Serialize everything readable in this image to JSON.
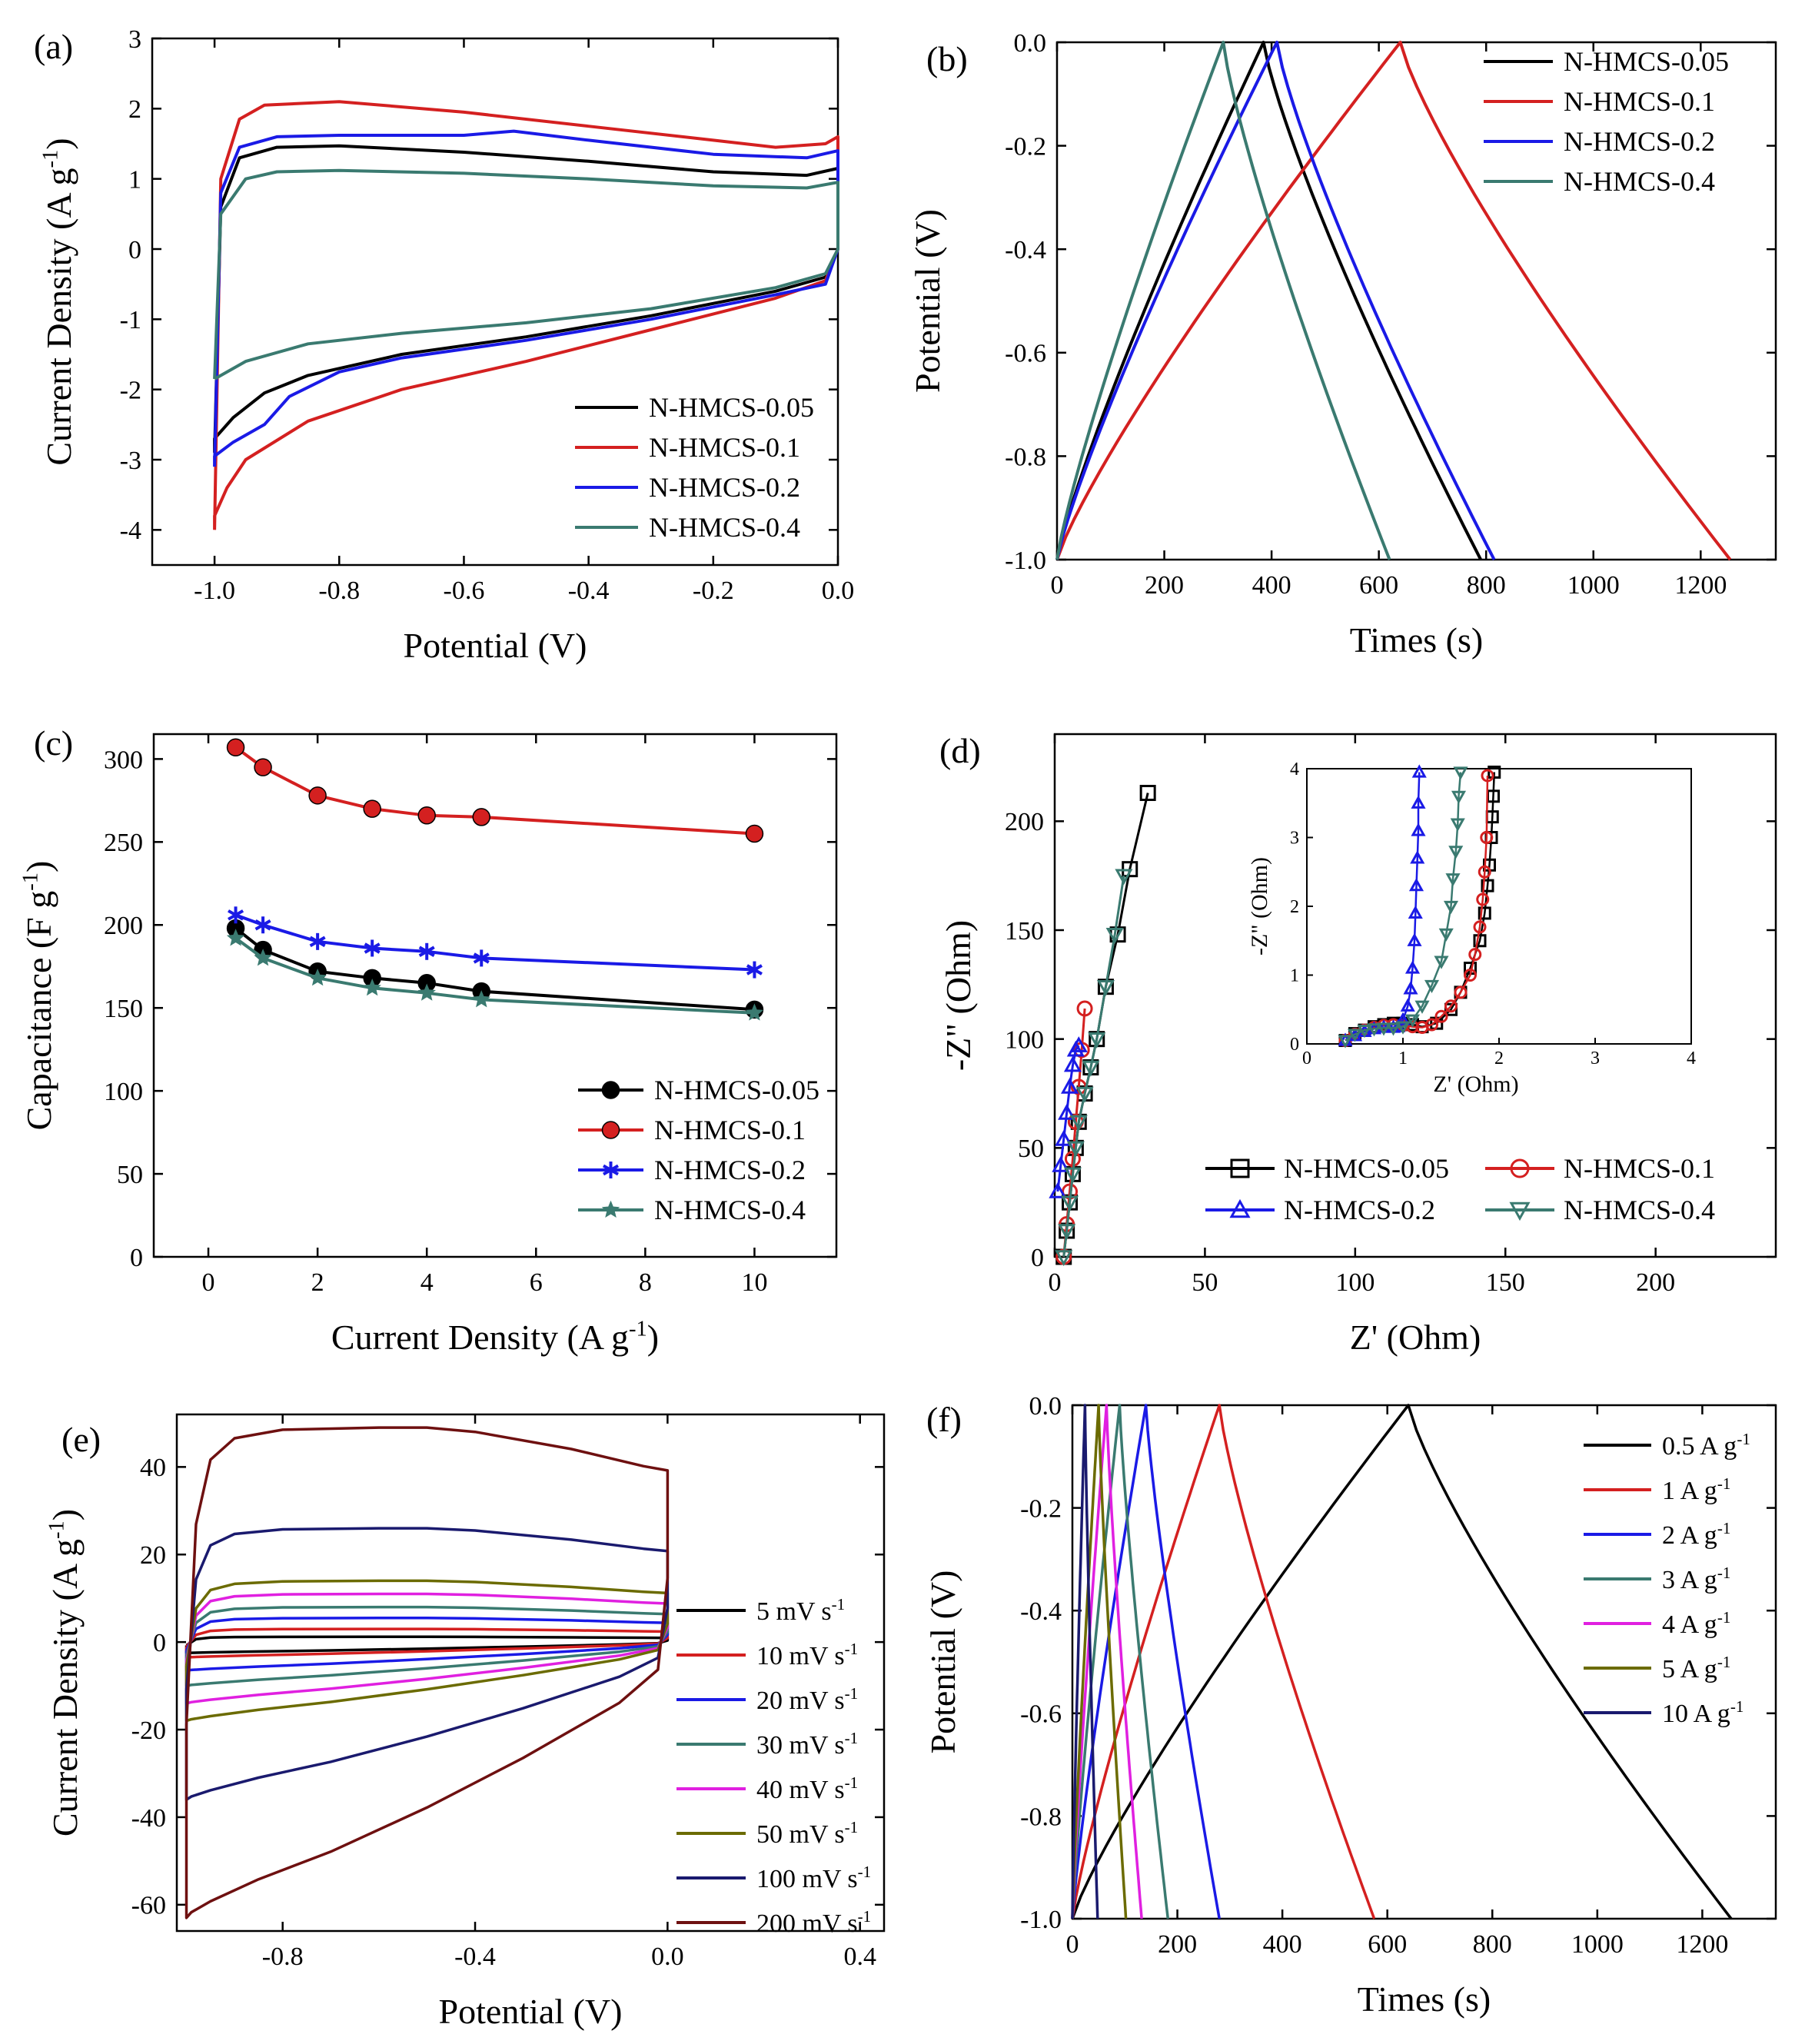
{
  "chart_data": [
    {
      "type": "line",
      "panel_label": "(a)",
      "xlabel": "Potential (V)",
      "ylabel": "Current Density (A g",
      "ylabel_sup": "-1",
      "ylabel_end": ")",
      "xlim": [
        -1.1,
        0.0
      ],
      "ylim": [
        -4.5,
        3
      ],
      "xticks": [
        -1.0,
        -0.8,
        -0.6,
        -0.4,
        -0.2,
        0.0
      ],
      "xtick_labels": [
        "-1.0",
        "-0.8",
        "-0.6",
        "-0.4",
        "-0.2",
        "0.0"
      ],
      "yticks": [
        -4,
        -3,
        -2,
        -1,
        0,
        1,
        2,
        3
      ],
      "ytick_labels": [
        "-4",
        "-3",
        "-2",
        "-1",
        "0",
        "1",
        "2",
        "3"
      ],
      "legend_position": "bottom-right",
      "series": [
        {
          "name": "N-HMCS-0.05",
          "color": "#000000",
          "x": [
            -1.0,
            -0.99,
            -0.96,
            -0.9,
            -0.8,
            -0.6,
            -0.4,
            -0.2,
            -0.05,
            0.0,
            0.0,
            -0.02,
            -0.1,
            -0.3,
            -0.5,
            -0.7,
            -0.85,
            -0.92,
            -0.97,
            -1.0,
            -1.0
          ],
          "y": [
            -2.9,
            0.6,
            1.3,
            1.45,
            1.47,
            1.38,
            1.25,
            1.1,
            1.05,
            1.15,
            0.0,
            -0.4,
            -0.6,
            -0.95,
            -1.25,
            -1.5,
            -1.8,
            -2.05,
            -2.4,
            -2.7,
            -2.9
          ]
        },
        {
          "name": "N-HMCS-0.1",
          "color": "#d42020",
          "x": [
            -1.0,
            -0.99,
            -0.96,
            -0.92,
            -0.8,
            -0.6,
            -0.4,
            -0.2,
            -0.1,
            -0.02,
            0.0,
            0.0,
            -0.02,
            -0.1,
            -0.3,
            -0.5,
            -0.7,
            -0.85,
            -0.95,
            -0.98,
            -1.0,
            -1.0
          ],
          "y": [
            -4.0,
            1.0,
            1.85,
            2.05,
            2.1,
            1.95,
            1.75,
            1.55,
            1.45,
            1.5,
            1.6,
            0.0,
            -0.45,
            -0.7,
            -1.15,
            -1.6,
            -2.0,
            -2.45,
            -3.0,
            -3.4,
            -3.8,
            -4.0
          ]
        },
        {
          "name": "N-HMCS-0.2",
          "color": "#1a1ae6",
          "x": [
            -1.0,
            -0.99,
            -0.96,
            -0.9,
            -0.8,
            -0.6,
            -0.52,
            -0.4,
            -0.2,
            -0.05,
            0.0,
            0.0,
            -0.02,
            -0.1,
            -0.3,
            -0.5,
            -0.7,
            -0.8,
            -0.88,
            -0.92,
            -0.97,
            -1.0,
            -1.0
          ],
          "y": [
            -3.1,
            0.8,
            1.45,
            1.6,
            1.62,
            1.62,
            1.68,
            1.55,
            1.35,
            1.3,
            1.4,
            0.0,
            -0.5,
            -0.65,
            -1.0,
            -1.3,
            -1.55,
            -1.75,
            -2.1,
            -2.5,
            -2.75,
            -2.95,
            -3.1
          ]
        },
        {
          "name": "N-HMCS-0.4",
          "color": "#3a7a70",
          "x": [
            -1.0,
            -0.99,
            -0.95,
            -0.9,
            -0.8,
            -0.6,
            -0.4,
            -0.2,
            -0.05,
            0.0,
            0.0,
            -0.02,
            -0.1,
            -0.3,
            -0.5,
            -0.7,
            -0.85,
            -0.95,
            -1.0
          ],
          "y": [
            -1.85,
            0.5,
            1.0,
            1.1,
            1.12,
            1.08,
            1.0,
            0.9,
            0.87,
            0.95,
            0.0,
            -0.35,
            -0.55,
            -0.85,
            -1.05,
            -1.2,
            -1.35,
            -1.6,
            -1.85
          ]
        }
      ]
    },
    {
      "type": "line",
      "panel_label": "(b)",
      "xlabel": "Times (s)",
      "ylabel": "Potential (V)",
      "xlim": [
        0,
        1340
      ],
      "ylim": [
        -1.0,
        0.0
      ],
      "xticks": [
        0,
        200,
        400,
        600,
        800,
        1000,
        1200
      ],
      "xtick_labels": [
        "0",
        "200",
        "400",
        "600",
        "800",
        "1000",
        "1200"
      ],
      "yticks": [
        -1.0,
        -0.8,
        -0.6,
        -0.4,
        -0.2,
        0.0
      ],
      "ytick_labels": [
        "-1.0",
        "-0.8",
        "-0.6",
        "-0.4",
        "-0.2",
        "0.0"
      ],
      "legend_position": "top-right",
      "series": [
        {
          "name": "N-HMCS-0.05",
          "color": "#000000",
          "t_peak": 385,
          "t_end": 790
        },
        {
          "name": "N-HMCS-0.1",
          "color": "#d42020",
          "t_peak": 640,
          "t_end": 1255
        },
        {
          "name": "N-HMCS-0.2",
          "color": "#1a1ae6",
          "t_peak": 410,
          "t_end": 815
        },
        {
          "name": "N-HMCS-0.4",
          "color": "#3a7a70",
          "t_peak": 310,
          "t_end": 620
        }
      ]
    },
    {
      "type": "line",
      "panel_label": "(c)",
      "xlabel": "Current Density (A g",
      "xlabel_sup": "-1",
      "xlabel_end": ")",
      "ylabel": "Capacitance (F g",
      "ylabel_sup": "-1",
      "ylabel_end": ")",
      "xlim": [
        -1,
        11.5
      ],
      "ylim": [
        0,
        315
      ],
      "xticks": [
        0,
        2,
        4,
        6,
        8,
        10
      ],
      "xtick_labels": [
        "0",
        "2",
        "4",
        "6",
        "8",
        "10"
      ],
      "yticks": [
        0,
        50,
        100,
        150,
        200,
        250,
        300
      ],
      "ytick_labels": [
        "0",
        "50",
        "100",
        "150",
        "200",
        "250",
        "300"
      ],
      "legend_position": "bottom-right",
      "x": [
        0.5,
        1,
        2,
        3,
        4,
        5,
        10
      ],
      "series": [
        {
          "name": "N-HMCS-0.05",
          "color": "#000000",
          "marker": "circle",
          "values": [
            198,
            185,
            172,
            168,
            165,
            160,
            149
          ]
        },
        {
          "name": "N-HMCS-0.1",
          "color": "#d42020",
          "marker": "circle",
          "values": [
            307,
            295,
            278,
            270,
            266,
            265,
            255
          ]
        },
        {
          "name": "N-HMCS-0.2",
          "color": "#1a1ae6",
          "marker": "asterisk",
          "values": [
            206,
            200,
            190,
            186,
            184,
            180,
            173
          ]
        },
        {
          "name": "N-HMCS-0.4",
          "color": "#3a7a70",
          "marker": "star",
          "values": [
            192,
            180,
            168,
            162,
            159,
            155,
            147
          ]
        }
      ]
    },
    {
      "type": "scatter",
      "panel_label": "(d)",
      "xlabel": "Z' (Ohm)",
      "ylabel": "-Z\" (Ohm)",
      "xlim": [
        0,
        240
      ],
      "ylim": [
        0,
        240
      ],
      "xticks": [
        0,
        50,
        100,
        150,
        200
      ],
      "xtick_labels": [
        "0",
        "50",
        "100",
        "150",
        "200"
      ],
      "yticks": [
        0,
        50,
        100,
        150,
        200
      ],
      "ytick_labels": [
        "0",
        "50",
        "100",
        "150",
        "200"
      ],
      "legend_position": "bottom",
      "series": [
        {
          "name": "N-HMCS-0.05",
          "color": "#000000",
          "marker": "square",
          "x": [
            3,
            4,
            5,
            6,
            7,
            8,
            10,
            12,
            14,
            17,
            21,
            25,
            31
          ],
          "y": [
            0,
            12,
            25,
            38,
            50,
            62,
            75,
            87,
            100,
            124,
            148,
            178,
            213
          ]
        },
        {
          "name": "N-HMCS-0.1",
          "color": "#d42020",
          "marker": "circle",
          "x": [
            3,
            4,
            5,
            6,
            7,
            8,
            9,
            10
          ],
          "y": [
            0,
            15,
            30,
            45,
            62,
            78,
            95,
            114
          ]
        },
        {
          "name": "N-HMCS-0.2",
          "color": "#1a1ae6",
          "marker": "triangle-up",
          "x": [
            1,
            2,
            3,
            4,
            5,
            6,
            7,
            8
          ],
          "y": [
            30,
            42,
            54,
            66,
            78,
            88,
            95,
            97
          ]
        },
        {
          "name": "N-HMCS-0.4",
          "color": "#3a7a70",
          "marker": "triangle-down",
          "x": [
            3,
            4,
            5,
            6,
            7,
            8,
            10,
            12,
            14,
            17,
            20,
            23
          ],
          "y": [
            0,
            12,
            25,
            38,
            50,
            62,
            75,
            87,
            100,
            124,
            148,
            175
          ]
        }
      ],
      "inset": {
        "xlabel": "Z' (Ohm)",
        "ylabel": "-Z\" (Ohm)",
        "xlim": [
          0,
          4
        ],
        "ylim": [
          0,
          4
        ],
        "xticks": [
          0,
          1,
          2,
          3,
          4
        ],
        "xtick_labels": [
          "0",
          "1",
          "2",
          "3",
          "4"
        ],
        "yticks": [
          0,
          1,
          2,
          3,
          4
        ],
        "ytick_labels": [
          "0",
          "1",
          "2",
          "3",
          "4"
        ],
        "series": [
          {
            "name": "N-HMCS-0.05",
            "color": "#000000",
            "marker": "square",
            "x": [
              0.4,
              0.5,
              0.6,
              0.7,
              0.8,
              0.9,
              1.0,
              1.1,
              1.2,
              1.35,
              1.5,
              1.6,
              1.7,
              1.8,
              1.85,
              1.88,
              1.9,
              1.92,
              1.93,
              1.94,
              1.95
            ],
            "y": [
              0.05,
              0.15,
              0.2,
              0.25,
              0.28,
              0.3,
              0.3,
              0.28,
              0.25,
              0.3,
              0.5,
              0.75,
              1.1,
              1.5,
              1.9,
              2.3,
              2.6,
              3.0,
              3.3,
              3.6,
              3.95
            ]
          },
          {
            "name": "N-HMCS-0.1",
            "color": "#d42020",
            "marker": "circle",
            "x": [
              0.4,
              0.5,
              0.6,
              0.7,
              0.8,
              0.9,
              1.0,
              1.1,
              1.2,
              1.3,
              1.4,
              1.5,
              1.6,
              1.7,
              1.75,
              1.8,
              1.83,
              1.85,
              1.87,
              1.88
            ],
            "y": [
              0.05,
              0.14,
              0.2,
              0.24,
              0.27,
              0.28,
              0.27,
              0.25,
              0.24,
              0.28,
              0.4,
              0.55,
              0.75,
              1.0,
              1.3,
              1.7,
              2.1,
              2.5,
              3.0,
              3.9
            ]
          },
          {
            "name": "N-HMCS-0.2",
            "color": "#1a1ae6",
            "marker": "triangle-up",
            "x": [
              0.4,
              0.5,
              0.6,
              0.7,
              0.8,
              0.9,
              0.95,
              1.0,
              1.05,
              1.08,
              1.1,
              1.12,
              1.13,
              1.14,
              1.15,
              1.16,
              1.16,
              1.17
            ],
            "y": [
              0.05,
              0.12,
              0.18,
              0.22,
              0.24,
              0.24,
              0.25,
              0.35,
              0.55,
              0.8,
              1.1,
              1.5,
              1.9,
              2.3,
              2.7,
              3.1,
              3.5,
              3.95
            ]
          },
          {
            "name": "N-HMCS-0.4",
            "color": "#3a7a70",
            "marker": "triangle-down",
            "x": [
              0.4,
              0.5,
              0.6,
              0.7,
              0.8,
              0.9,
              1.0,
              1.1,
              1.2,
              1.3,
              1.4,
              1.45,
              1.5,
              1.52,
              1.55,
              1.57,
              1.58,
              1.6
            ],
            "y": [
              0.05,
              0.14,
              0.2,
              0.22,
              0.23,
              0.23,
              0.25,
              0.35,
              0.55,
              0.85,
              1.2,
              1.6,
              2.0,
              2.4,
              2.8,
              3.2,
              3.6,
              3.95
            ]
          }
        ]
      }
    },
    {
      "type": "line",
      "panel_label": "(e)",
      "xlabel": "Potential (V)",
      "ylabel": "Current Density (A g",
      "ylabel_sup": "-1",
      "ylabel_end": ")",
      "xlim": [
        -1.02,
        0.45
      ],
      "ylim": [
        -66,
        52
      ],
      "xticks": [
        -0.8,
        -0.4,
        0.0,
        0.4
      ],
      "xtick_labels": [
        "-0.8",
        "-0.4",
        "0.0",
        "0.4"
      ],
      "yticks": [
        -60,
        -40,
        -20,
        0,
        20,
        40
      ],
      "ytick_labels": [
        "-60",
        "-40",
        "-20",
        "0",
        "20",
        "40"
      ],
      "legend_position": "right",
      "series": [
        {
          "name": "5 mV s",
          "unit_sup": "-1",
          "color": "#000000",
          "top": 1.2,
          "bottom": -2.5
        },
        {
          "name": "10 mV s",
          "unit_sup": "-1",
          "color": "#d42020",
          "top": 3.0,
          "bottom": -3.5
        },
        {
          "name": "20 mV s",
          "unit_sup": "-1",
          "color": "#1a1ae6",
          "top": 5.5,
          "bottom": -6.5
        },
        {
          "name": "30 mV s",
          "unit_sup": "-1",
          "color": "#3a7a70",
          "top": 8.0,
          "bottom": -10
        },
        {
          "name": "40 mV s",
          "unit_sup": "-1",
          "color": "#e020e0",
          "top": 11.0,
          "bottom": -14
        },
        {
          "name": "50 mV s",
          "unit_sup": "-1",
          "color": "#6b6b00",
          "top": 14.0,
          "bottom": -18
        },
        {
          "name": "100 mV s",
          "unit_sup": "-1",
          "color": "#1a1a6e",
          "top": 26.0,
          "bottom": -36
        },
        {
          "name": "200 mV s",
          "unit_sup": "-1",
          "color": "#6e1010",
          "top": 49.0,
          "bottom": -63
        }
      ]
    },
    {
      "type": "line",
      "panel_label": "(f)",
      "xlabel": "Times (s)",
      "ylabel": "Potential (V)",
      "xlim": [
        0,
        1340
      ],
      "ylim": [
        -1.0,
        0.0
      ],
      "xticks": [
        0,
        200,
        400,
        600,
        800,
        1000,
        1200
      ],
      "xtick_labels": [
        "0",
        "200",
        "400",
        "600",
        "800",
        "1000",
        "1200"
      ],
      "yticks": [
        -1.0,
        -0.8,
        -0.6,
        -0.4,
        -0.2,
        0.0
      ],
      "ytick_labels": [
        "-1.0",
        "-0.8",
        "-0.6",
        "-0.4",
        "-0.2",
        "0.0"
      ],
      "legend_position": "top-right",
      "series": [
        {
          "name": "0.5 A g",
          "unit_sup": "-1",
          "color": "#000000",
          "t_peak": 640,
          "t_end": 1255
        },
        {
          "name": "1 A g",
          "unit_sup": "-1",
          "color": "#d42020",
          "t_peak": 280,
          "t_end": 575
        },
        {
          "name": "2 A g",
          "unit_sup": "-1",
          "color": "#1a1ae6",
          "t_peak": 140,
          "t_end": 280
        },
        {
          "name": "3 A g",
          "unit_sup": "-1",
          "color": "#3a7a70",
          "t_peak": 90,
          "t_end": 182
        },
        {
          "name": "4 A g",
          "unit_sup": "-1",
          "color": "#e020e0",
          "t_peak": 65,
          "t_end": 132
        },
        {
          "name": "5 A g",
          "unit_sup": "-1",
          "color": "#6b6b00",
          "t_peak": 50,
          "t_end": 102
        },
        {
          "name": "10 A g",
          "unit_sup": "-1",
          "color": "#1a1a6e",
          "t_peak": 24,
          "t_end": 48
        }
      ]
    }
  ]
}
